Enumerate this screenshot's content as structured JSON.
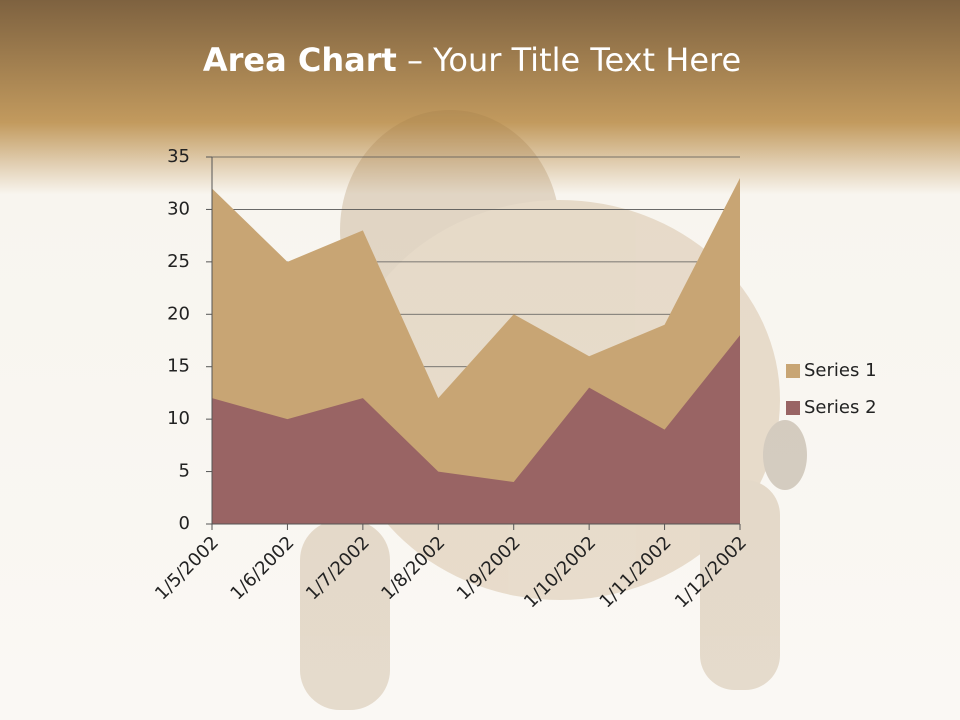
{
  "chart_data": {
    "type": "area",
    "title": [
      "Area Chart",
      "– Your Title Text Here"
    ],
    "categories": [
      "1/5/2002",
      "1/6/2002",
      "1/7/2002",
      "1/8/2002",
      "1/9/2002",
      "1/10/2002",
      "1/11/2002",
      "1/12/2002"
    ],
    "series": [
      {
        "name": "Series 1",
        "color": "#c8a574",
        "values": [
          32,
          25,
          28,
          12,
          20,
          16,
          19,
          33
        ]
      },
      {
        "name": "Series 2",
        "color": "#996464",
        "values": [
          12,
          10,
          12,
          5,
          4,
          13,
          9,
          18
        ]
      }
    ],
    "ylim": [
      0,
      35
    ],
    "yticks": [
      0,
      5,
      10,
      15,
      20,
      25,
      30,
      35
    ],
    "grid": true,
    "legend": "right"
  }
}
